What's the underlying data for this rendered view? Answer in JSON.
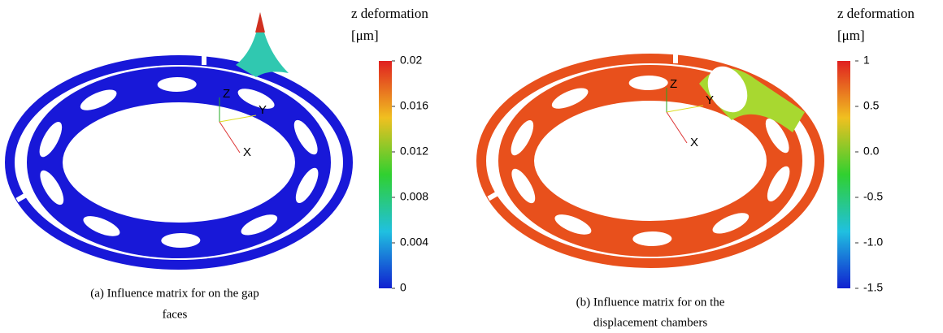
{
  "panels": [
    {
      "colorbar": {
        "title": "z deformation",
        "unit": "[μm]",
        "ticks": [
          "0.02",
          "0.016",
          "0.012",
          "0.008",
          "0.004",
          "0"
        ]
      },
      "axes": {
        "x": "X",
        "y": "Y",
        "z": "Z"
      },
      "caption": [
        "(a) Influence matrix for on the gap",
        "faces"
      ]
    },
    {
      "colorbar": {
        "title": "z deformation",
        "unit": "[μm]",
        "ticks": [
          "1",
          "0.5",
          "0.0",
          "-0.5",
          "-1.0",
          "-1.5"
        ]
      },
      "axes": {
        "x": "X",
        "y": "Y",
        "z": "Z"
      },
      "caption": [
        "(b) Influence matrix for on the",
        "displacement chambers"
      ]
    }
  ]
}
